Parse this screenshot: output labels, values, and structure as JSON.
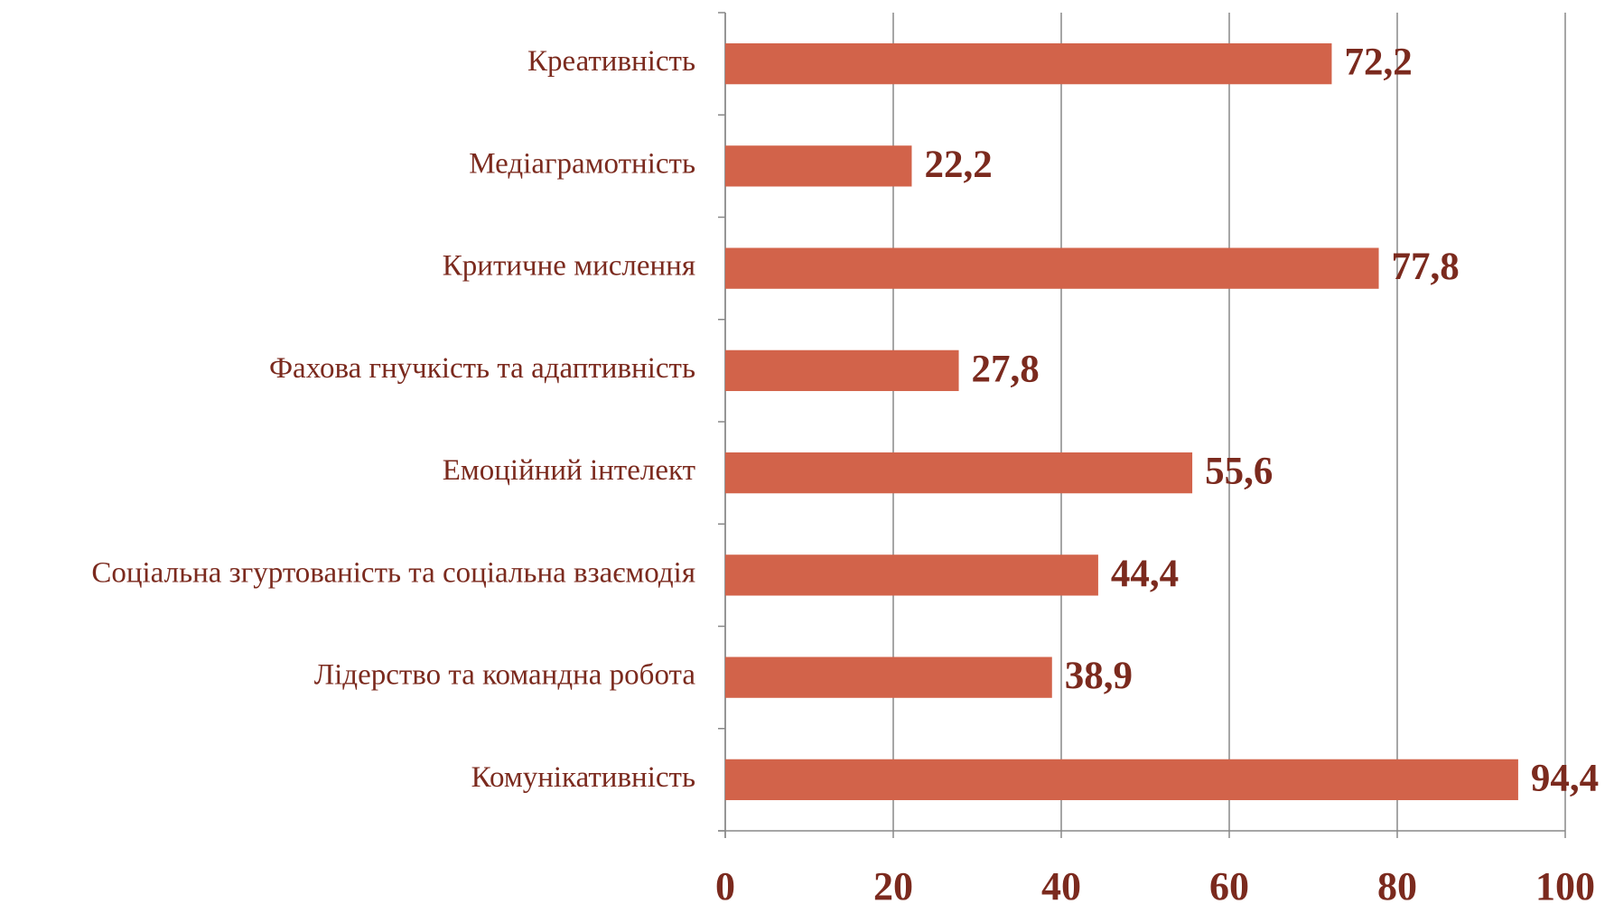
{
  "chart_data": {
    "type": "bar",
    "orientation": "horizontal",
    "categories": [
      "Креативність",
      "Медіаграмотність",
      "Критичне мислення",
      "Фахова гнучкість та адаптивність",
      "Емоційний інтелект",
      "Соціальна згуртованість та соціальна взаємодія",
      "Лідерство та командна робота",
      "Комунікативність"
    ],
    "values": [
      72.2,
      22.2,
      77.8,
      27.8,
      55.6,
      44.4,
      38.9,
      94.4
    ],
    "value_labels": [
      "72,2",
      "22,2",
      "77,8",
      "27,8",
      "55,6",
      "44,4",
      "38,9",
      "94,4"
    ],
    "color": "#d2634a",
    "xlim": [
      0,
      100
    ],
    "xticks": [
      0,
      20,
      40,
      60,
      80,
      100
    ],
    "grid": true
  }
}
